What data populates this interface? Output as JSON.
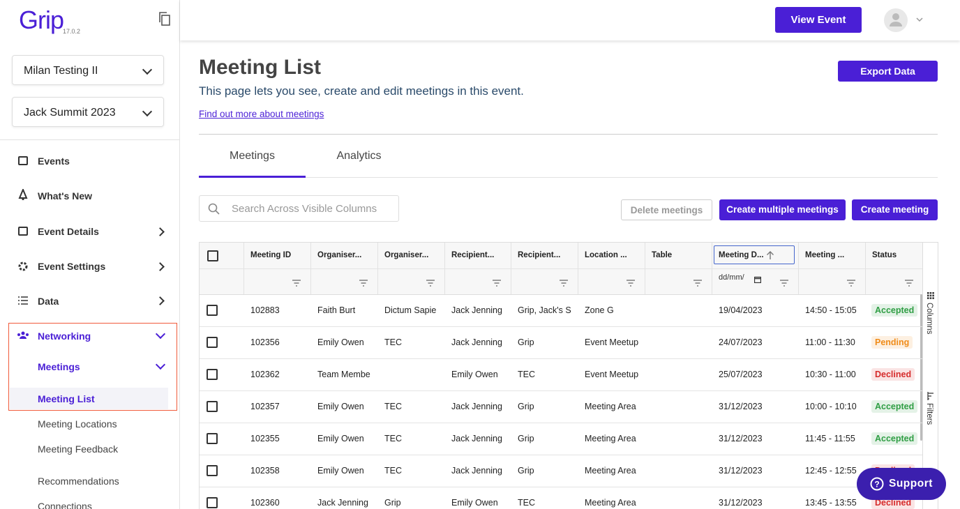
{
  "sidebar": {
    "logo": "Grip",
    "version": "17.0.2",
    "selects": [
      "Milan Testing II",
      "Jack Summit 2023"
    ],
    "nav": [
      "Events",
      "What's New",
      "Event Details",
      "Event Settings",
      "Data",
      "Networking",
      "Meetings",
      "Meeting List",
      "Meeting Locations",
      "Meeting Feedback",
      "Recommendations",
      "Connections"
    ]
  },
  "header": {
    "view_event": "View Event"
  },
  "page": {
    "title": "Meeting List",
    "description": "This page lets you see, create and edit meetings in this event.",
    "link": "Find out more about meetings",
    "export": "Export Data",
    "tabs": [
      "Meetings",
      "Analytics"
    ],
    "search_placeholder": "Search Across Visible Columns",
    "buttons": [
      "Delete meetings",
      "Create multiple meetings",
      "Create meeting"
    ]
  },
  "table": {
    "columns": [
      "Meeting ID",
      "Organiser...",
      "Organiser...",
      "Recipient...",
      "Recipient...",
      "Location ...",
      "Table",
      "Meeting D...",
      "Meeting ...",
      "Status"
    ],
    "date_filter_placeholder": "dd/mm/",
    "side_panel": [
      "Columns",
      "Filters"
    ],
    "rows": [
      {
        "cells": [
          "102883",
          "Faith Burt",
          "Dictum Sapie",
          "Jack Jenning",
          "Grip, Jack's S",
          "Zone G",
          null,
          "19/04/2023",
          "14:50 - 15:05",
          "Accepted"
        ],
        "status_color": "#2f9e44"
      },
      {
        "cells": [
          "102356",
          "Emily Owen",
          "TEC",
          "Jack Jenning",
          "Grip",
          "Event Meetup",
          null,
          "24/07/2023",
          "11:00 - 11:30",
          "Pending"
        ],
        "status_color": "#f08c1a"
      },
      {
        "cells": [
          "102362",
          "Team Membe",
          null,
          "Emily Owen",
          "TEC",
          "Event Meetup",
          null,
          "25/07/2023",
          "10:30 - 11:00",
          "Declined"
        ],
        "status_color": "#d62c2c"
      },
      {
        "cells": [
          "102357",
          "Emily Owen",
          "TEC",
          "Jack Jenning",
          "Grip",
          "Meeting Area",
          null,
          "31/12/2023",
          "10:00 - 10:10",
          "Accepted"
        ],
        "status_color": "#2f9e44"
      },
      {
        "cells": [
          "102355",
          "Emily Owen",
          "TEC",
          "Jack Jenning",
          "Grip",
          "Meeting Area",
          null,
          "31/12/2023",
          "11:45 - 11:55",
          "Accepted"
        ],
        "status_color": "#2f9e44"
      },
      {
        "cells": [
          "102358",
          "Emily Owen",
          "TEC",
          "Jack Jenning",
          "Grip",
          "Meeting Area",
          null,
          "31/12/2023",
          "12:45 - 12:55",
          "Declined"
        ],
        "status_color": "#d62c2c"
      },
      {
        "cells": [
          "102360",
          "Jack Jenning",
          "Grip",
          "Emily Owen",
          "TEC",
          "Meeting Area",
          null,
          "31/12/2023",
          "13:45 - 13:55",
          "Declined"
        ],
        "status_color": "#d62c2c"
      }
    ]
  },
  "support": "Support"
}
